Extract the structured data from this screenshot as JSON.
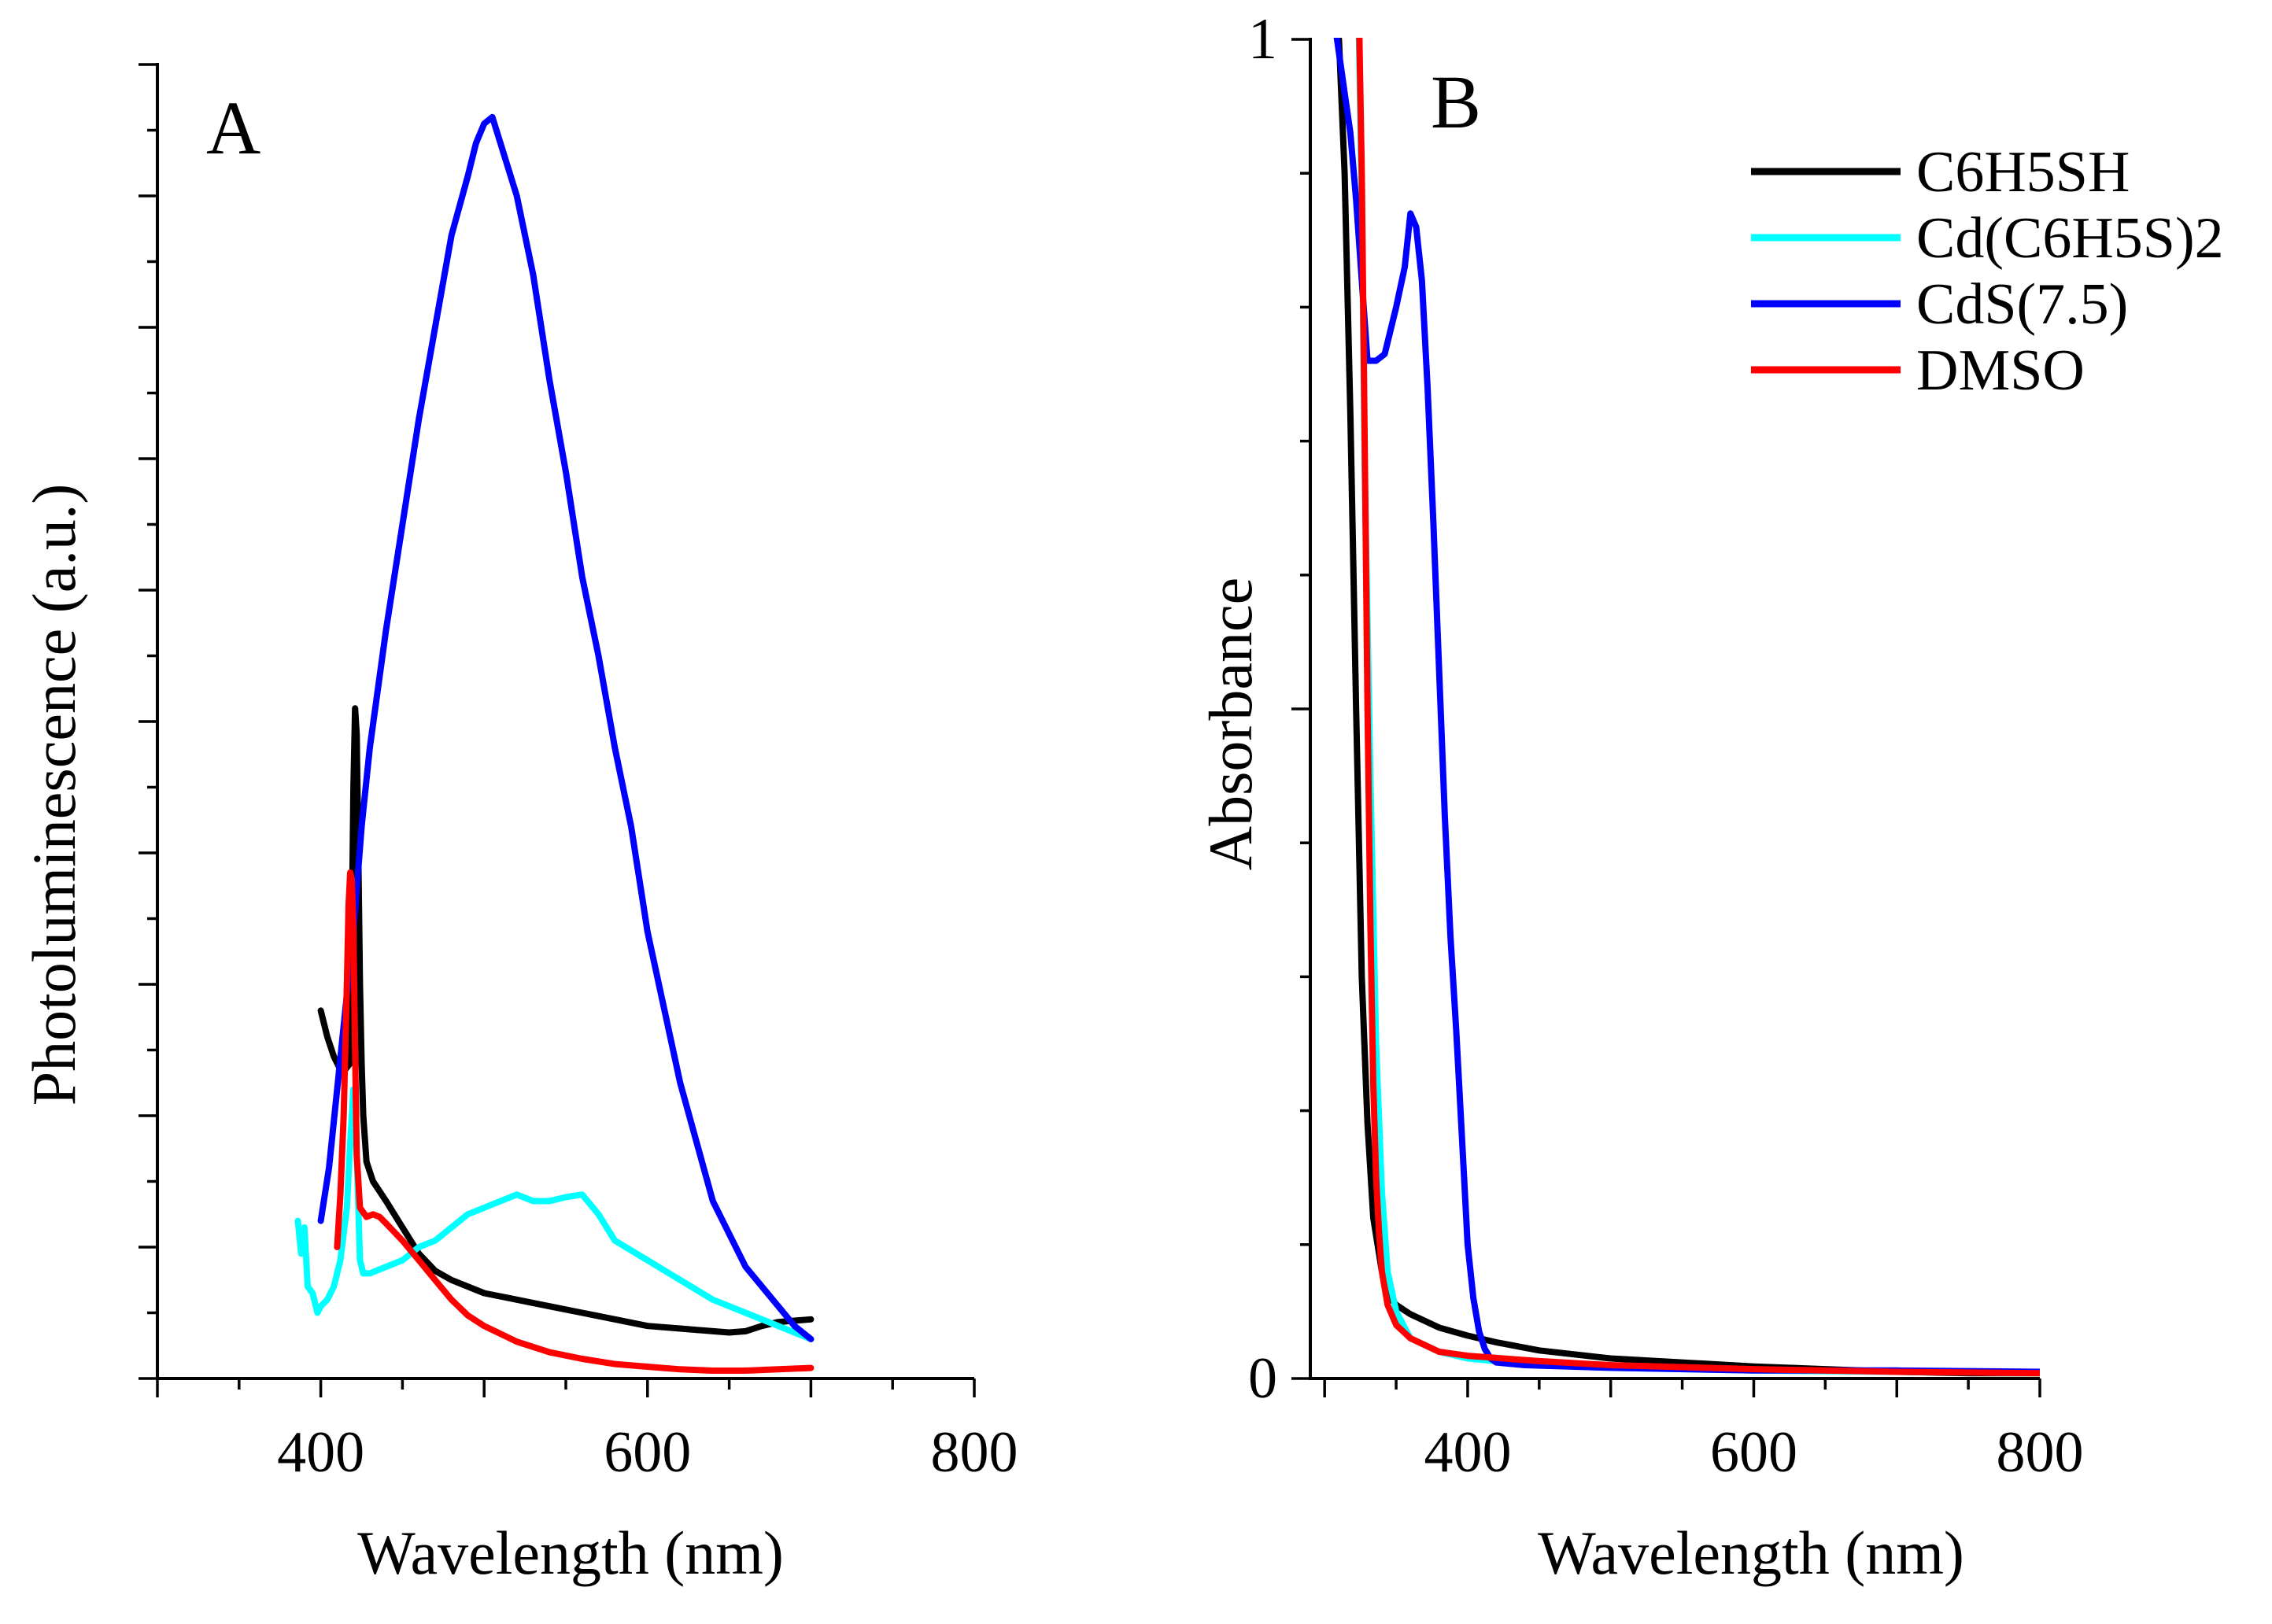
{
  "chart_data": [
    {
      "panel": "A",
      "type": "line",
      "xlabel": "Wavelength (nm)",
      "ylabel": "Photoluminescence (a.u.)",
      "xlim": [
        300,
        800
      ],
      "ylim": [
        0,
        100
      ],
      "xticks": [
        400,
        600,
        800
      ],
      "y_tick_labels_shown": false,
      "y_minor_tick_step": 5,
      "series": [
        {
          "name": "C6H5SH",
          "color": "#000000",
          "x": [
            400,
            404,
            408,
            412,
            415,
            418,
            419,
            420,
            421,
            422,
            423,
            424,
            425,
            426,
            428,
            432,
            440,
            450,
            460,
            470,
            480,
            490,
            500,
            520,
            540,
            560,
            580,
            600,
            620,
            640,
            650,
            660,
            670,
            680,
            690,
            700
          ],
          "y": [
            28,
            26,
            24.5,
            23.5,
            23.5,
            24,
            34,
            45,
            51,
            49,
            40,
            30,
            24,
            20,
            16.5,
            15,
            13.5,
            11.5,
            9.5,
            8.2,
            7.5,
            7,
            6.5,
            6,
            5.5,
            5,
            4.5,
            4,
            3.8,
            3.6,
            3.5,
            3.6,
            4,
            4.3,
            4.4,
            4.5
          ]
        },
        {
          "name": "Cd(C6H5S)2",
          "color": "#00ffff",
          "x": [
            386,
            388,
            390,
            392,
            395,
            398,
            400,
            404,
            408,
            412,
            416,
            418,
            420,
            422,
            424,
            426,
            430,
            440,
            450,
            460,
            470,
            480,
            490,
            500,
            510,
            520,
            530,
            540,
            550,
            560,
            570,
            580,
            600,
            620,
            640,
            660,
            680,
            700
          ],
          "y": [
            12,
            9.5,
            11.5,
            7,
            6.5,
            5,
            5.5,
            6,
            7,
            9,
            13,
            18,
            22,
            17,
            9,
            8,
            8,
            8.5,
            9,
            10,
            10.5,
            11.5,
            12.5,
            13,
            13.5,
            14,
            13.5,
            13.5,
            13.8,
            14,
            12.5,
            10.5,
            9,
            7.5,
            6,
            5,
            4,
            3
          ]
        },
        {
          "name": "CdS(7.5)",
          "color": "#0000ff",
          "x": [
            400,
            405,
            410,
            415,
            420,
            425,
            430,
            440,
            450,
            460,
            470,
            480,
            490,
            495,
            500,
            505,
            510,
            520,
            530,
            540,
            550,
            560,
            570,
            580,
            590,
            600,
            620,
            640,
            660,
            680,
            690,
            700
          ],
          "y": [
            12,
            16,
            22,
            28,
            34,
            42,
            48,
            57,
            65,
            73,
            80,
            87,
            91.5,
            94,
            95.5,
            96,
            94,
            90,
            84,
            76,
            69,
            61,
            55,
            48,
            42,
            34,
            22.5,
            13.5,
            8.5,
            5.5,
            4,
            3
          ]
        },
        {
          "name": "DMSO",
          "color": "#ff0000",
          "x": [
            410,
            412,
            414,
            416,
            417,
            418,
            419,
            420,
            421,
            422,
            424,
            428,
            432,
            436,
            440,
            450,
            460,
            470,
            480,
            490,
            500,
            520,
            540,
            560,
            580,
            600,
            620,
            640,
            660,
            680,
            700
          ],
          "y": [
            10,
            14,
            20,
            30,
            36,
            38.5,
            38,
            34,
            25,
            17,
            13,
            12.3,
            12.5,
            12.3,
            11.8,
            10.5,
            9,
            7.5,
            6,
            4.8,
            4,
            2.8,
            2,
            1.5,
            1.1,
            0.9,
            0.7,
            0.6,
            0.6,
            0.7,
            0.8
          ]
        }
      ]
    },
    {
      "panel": "B",
      "type": "line",
      "xlabel": "Wavelength (nm)",
      "ylabel": "Absorbance",
      "xlim": [
        290,
        800
      ],
      "ylim": [
        0,
        1
      ],
      "xticks": [
        400,
        600,
        800
      ],
      "yticks": [
        0,
        1
      ],
      "y_minor_tick_step": 0.1,
      "legend_position": "top-right",
      "series": [
        {
          "name": "C6H5SH",
          "color": "#000000",
          "x": [
            306,
            310,
            314,
            318,
            322,
            326,
            330,
            334,
            340,
            346,
            350,
            360,
            380,
            400,
            420,
            450,
            500,
            550,
            600,
            650,
            700,
            750,
            800
          ],
          "y": [
            1.02,
            1.0,
            0.9,
            0.72,
            0.5,
            0.3,
            0.19,
            0.12,
            0.08,
            0.06,
            0.055,
            0.048,
            0.038,
            0.032,
            0.027,
            0.021,
            0.015,
            0.012,
            0.009,
            0.007,
            0.005,
            0.004,
            0.004
          ]
        },
        {
          "name": "Cd(C6H5S)2",
          "color": "#00ffff",
          "x": [
            323,
            324,
            326,
            328,
            332,
            336,
            340,
            344,
            350,
            360,
            380,
            400,
            450,
            500,
            600,
            700,
            800
          ],
          "y": [
            1.02,
            1.0,
            0.88,
            0.68,
            0.45,
            0.25,
            0.14,
            0.08,
            0.05,
            0.03,
            0.02,
            0.015,
            0.01,
            0.008,
            0.006,
            0.005,
            0.004
          ]
        },
        {
          "name": "CdS(7.5)",
          "color": "#0000ff",
          "x": [
            306,
            310,
            314,
            318,
            322,
            326,
            330,
            336,
            342,
            350,
            356,
            360,
            364,
            368,
            372,
            376,
            380,
            384,
            388,
            392,
            396,
            400,
            404,
            408,
            412,
            416,
            420,
            440,
            500,
            600,
            700,
            800
          ],
          "y": [
            1.02,
            0.99,
            0.96,
            0.93,
            0.88,
            0.82,
            0.76,
            0.76,
            0.765,
            0.8,
            0.83,
            0.87,
            0.86,
            0.82,
            0.74,
            0.64,
            0.53,
            0.42,
            0.33,
            0.26,
            0.18,
            0.1,
            0.06,
            0.035,
            0.022,
            0.015,
            0.012,
            0.01,
            0.008,
            0.006,
            0.006,
            0.005
          ]
        },
        {
          "name": "DMSO",
          "color": "#ff0000",
          "x": [
            324,
            326,
            328,
            330,
            332,
            334,
            336,
            338,
            340,
            344,
            350,
            360,
            380,
            400,
            450,
            500,
            600,
            700,
            800
          ],
          "y": [
            1.02,
            0.9,
            0.7,
            0.5,
            0.34,
            0.22,
            0.15,
            0.11,
            0.08,
            0.055,
            0.04,
            0.03,
            0.02,
            0.017,
            0.013,
            0.01,
            0.007,
            0.005,
            0.004
          ]
        }
      ]
    }
  ]
}
